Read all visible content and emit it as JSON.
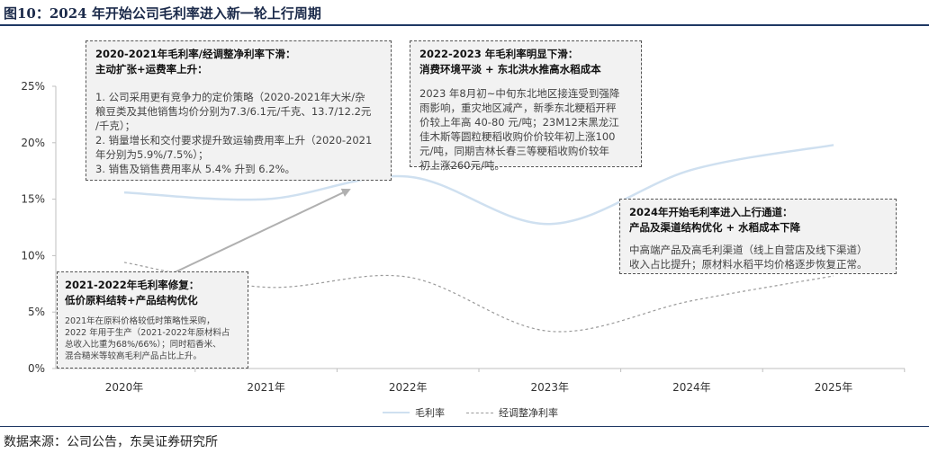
{
  "figure_title": "图10：2024 年开始公司毛利率进入新一轮上行周期",
  "source": "数据来源：公司公告，东吴证券研究所",
  "colors": {
    "gross_margin": "#cfe0f0",
    "adjusted_net_margin": "#9a9a9a",
    "arrow": "#b0b0b0"
  },
  "annotations": [
    {
      "title_lines": [
        "2020-2021年毛利率/经调整净利率下滑：",
        "主动扩张+运费率上升："
      ],
      "body_lines": [
        "1. 公司采用更有竞争力的定价策略（2020-2021年大米/杂",
        "粮豆类及其他销售均价分别为7.3/6.1元/千克、13.7/12.2元",
        "/千克）；",
        "2. 销量增长和交付要求提升致运输费用率上升（2020-2021",
        "年分别为5.9%/7.5%）；",
        "3. 销售及销售费用率从 5.4% 升到 6.2%。"
      ]
    },
    {
      "title_lines": [
        "2022-2023 年毛利率明显下滑：",
        "消费环境平淡 + 东北洪水推高水稻成本"
      ],
      "body_lines": [
        "2023 年8月初~中旬东北地区接连受到强降",
        "雨影响，重灾地区减产，新季东北粳稻开秤",
        "价较上年高 40-80 元/吨；23M12末黑龙江",
        "佳木斯等圆粒粳稻收购价价较年初上涨100",
        "元/吨，同期吉林长春三等粳稻收购价较年",
        "初上涨260元/吨。"
      ]
    },
    {
      "title_lines": [
        "2024年开始毛利率进入上行通道：",
        "产品及渠道结构优化 + 水稻成本下降"
      ],
      "body_lines": [
        "中高端产品及高毛利渠道（线上自营店及线下渠道）",
        "收入占比提升；原材料水稻平均价格逐步恢复正常。"
      ]
    },
    {
      "title_lines": [
        "2021-2022年毛利率修复：",
        "低价原料结转+产品结构优化"
      ],
      "body_lines": [
        "2021年在原料价格较低时策略性采购，",
        "2022 年用于生产（2021-2022年原材料占",
        "总收入比重为68%/66%）；同时稻香米、",
        "混合糙米等较高毛利产品占比上升。"
      ]
    }
  ],
  "chart_data": {
    "type": "line",
    "x": [
      "2020年",
      "2021年",
      "2022年",
      "2023年",
      "2024年",
      "2025年"
    ],
    "ylim": [
      0,
      25
    ],
    "yticks": [
      "0%",
      "5%",
      "10%",
      "15%",
      "20%",
      "25%"
    ],
    "series": [
      {
        "name": "毛利率",
        "values": [
          15.6,
          15.0,
          17.0,
          12.8,
          17.6,
          19.8
        ]
      },
      {
        "name": "经调整净利率",
        "values": [
          9.4,
          7.2,
          8.1,
          3.3,
          6.0,
          8.2
        ]
      }
    ]
  }
}
